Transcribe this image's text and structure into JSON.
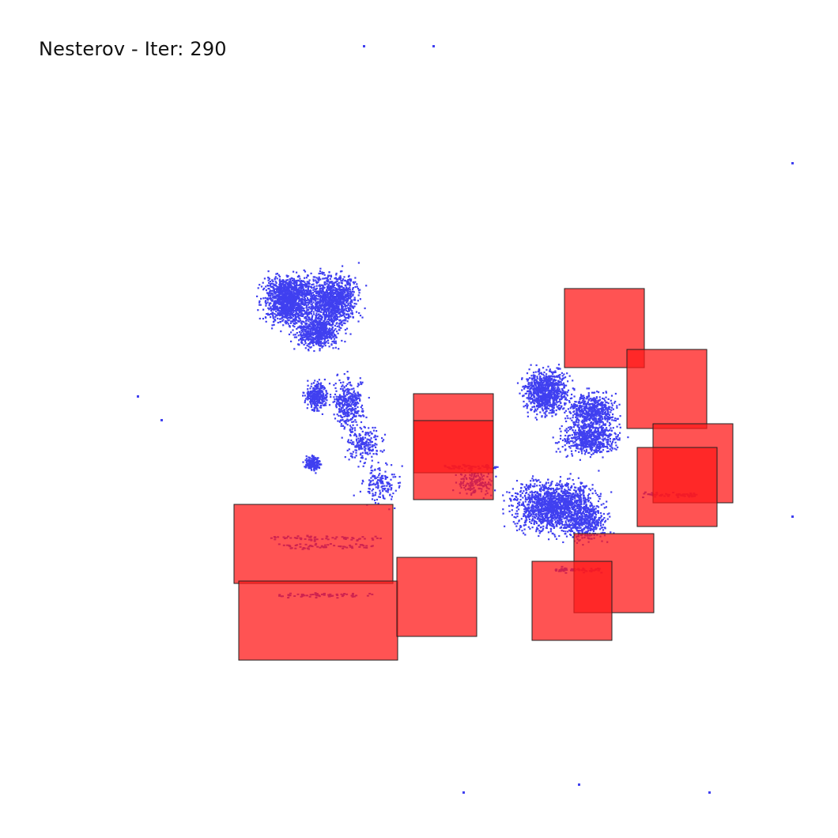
{
  "title": "Nesterov - Iter: 290",
  "colors": {
    "background": "#ffffff",
    "cells": "#4040f0",
    "macros": "#ff1a1a",
    "macro_border": "#222222"
  },
  "legend": []
}
